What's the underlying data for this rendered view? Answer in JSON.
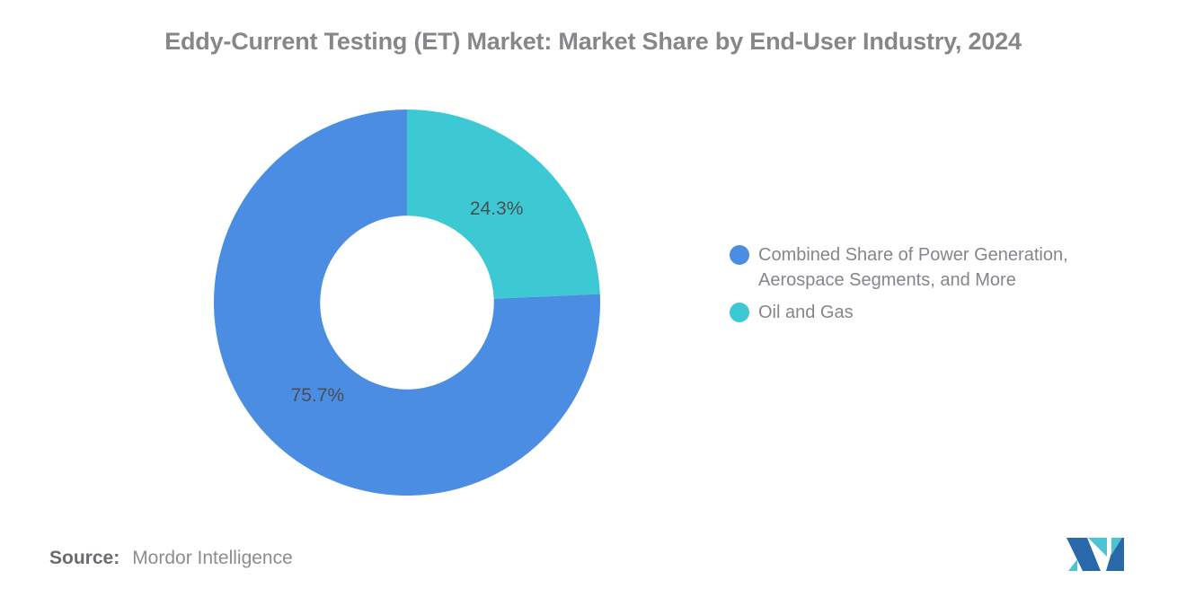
{
  "title": "Eddy-Current Testing (ET) Market: Market Share by End-User Industry, 2024",
  "chart_data": {
    "type": "pie",
    "subtype": "donut",
    "title": "Eddy-Current Testing (ET) Market: Market Share by End-User Industry, 2024",
    "direction": "clockwise",
    "start_angle_deg": 0,
    "donut_hole_ratio": 0.45,
    "legend_position": "right",
    "data_label_color": "#4b4f55",
    "slices": [
      {
        "label": "Combined Share of Power Generation, Aerospace Segments, and More",
        "label_lines": [
          "Combined Share of Power Generation,",
          "Aerospace Segments, and More"
        ],
        "value": 75.7,
        "pct_label": "75.7%",
        "color": "#4a8de2"
      },
      {
        "label": "Oil and Gas",
        "label_lines": [
          "Oil and Gas"
        ],
        "value": 24.3,
        "pct_label": "24.3%",
        "color": "#3dc9d3"
      }
    ]
  },
  "source": {
    "prefix": "Source:",
    "text": "Mordor Intelligence"
  },
  "logo": {
    "name": "mordor-intelligence-logo",
    "dark_blue": "#2a69a9",
    "teal": "#4dc4d1"
  }
}
